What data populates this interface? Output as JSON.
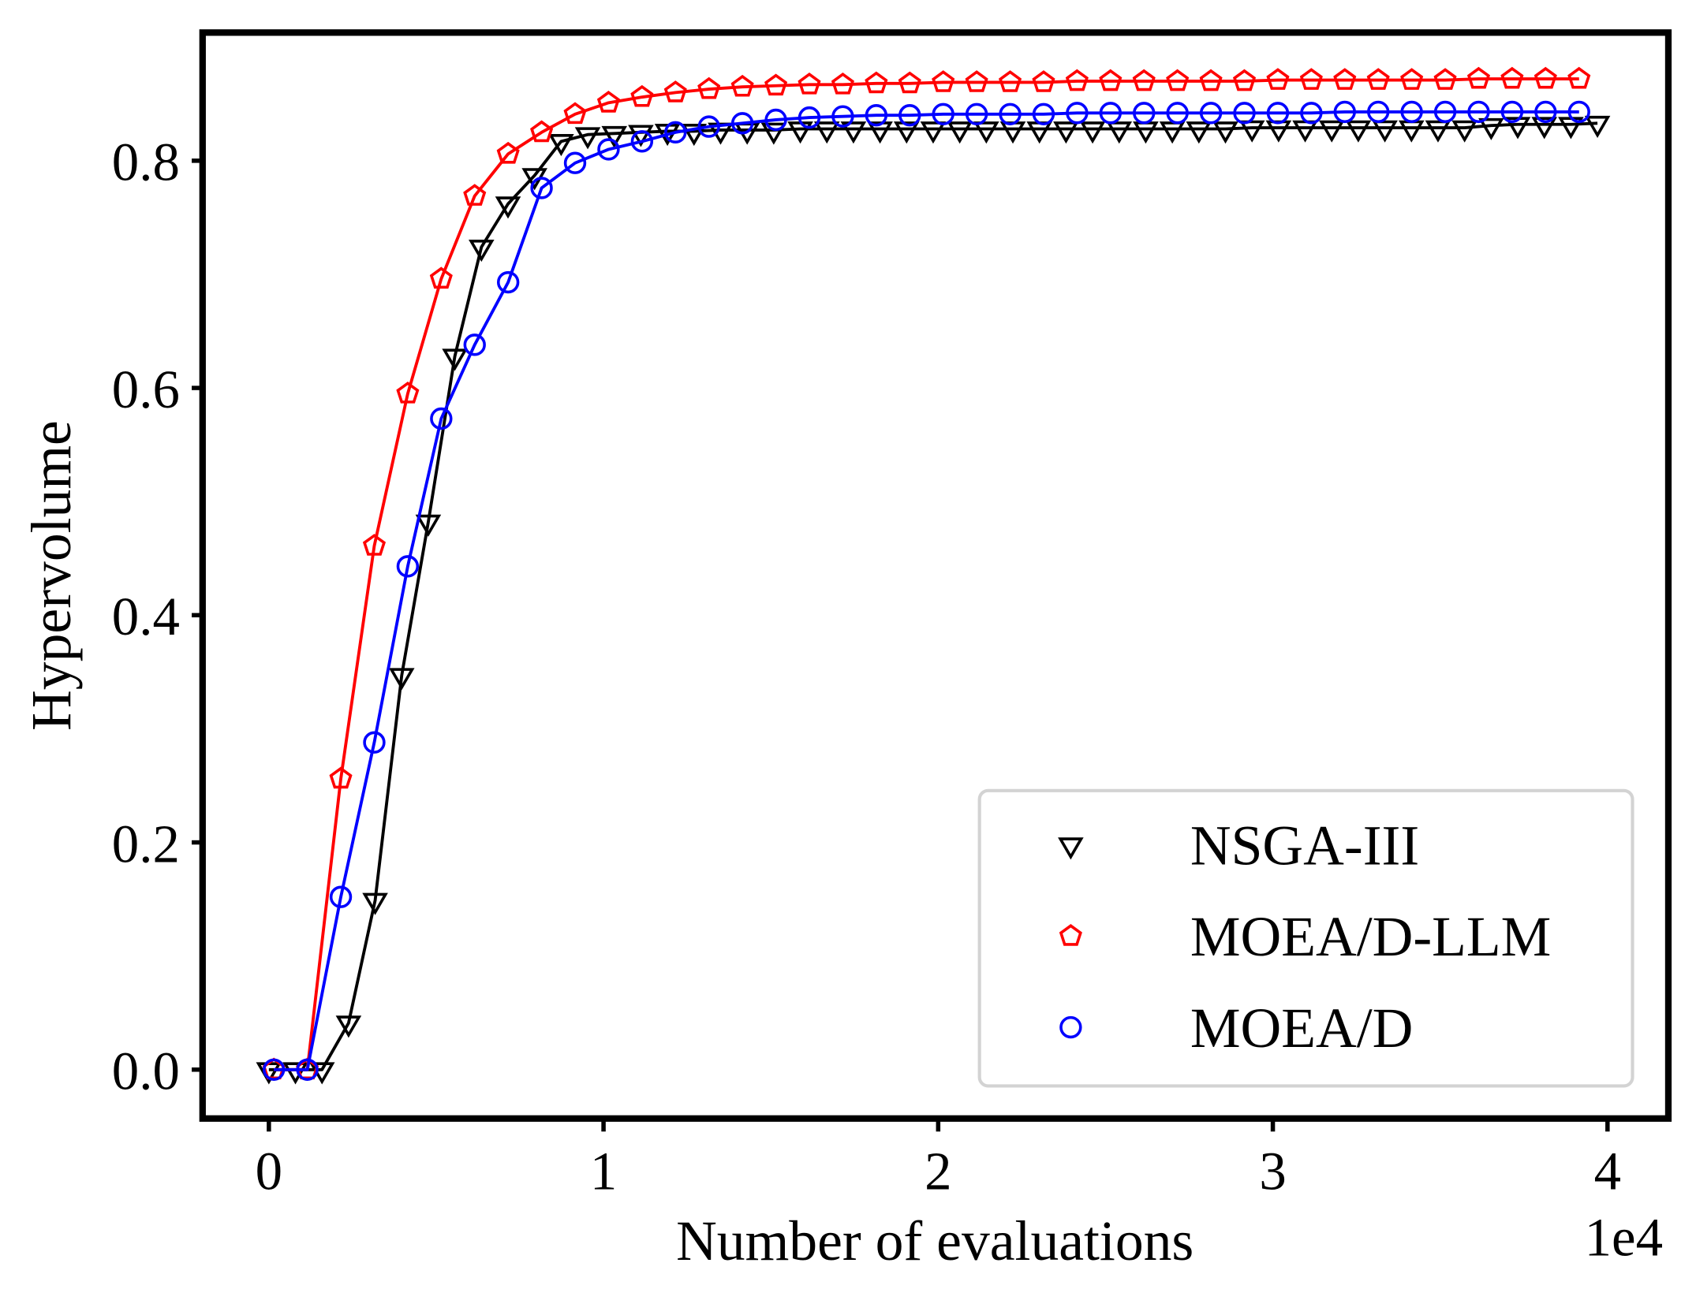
{
  "chart_data": {
    "type": "line",
    "title": "",
    "xlabel": "Number of evaluations",
    "ylabel": "Hypervolume",
    "x_offset_label": "1e4",
    "xlim": [
      -2000,
      42000
    ],
    "ylim": [
      -0.08,
      0.93
    ],
    "xticks": [
      0,
      10000,
      20000,
      30000,
      40000
    ],
    "xtick_labels": [
      "0",
      "1",
      "2",
      "3",
      "4"
    ],
    "yticks": [
      0.0,
      0.2,
      0.4,
      0.6,
      0.8
    ],
    "ytick_labels": [
      "0.0",
      "0.2",
      "0.4",
      "0.6",
      "0.8"
    ],
    "grid": false,
    "legend_position": "lower-right",
    "series": [
      {
        "name": "NSGA-III",
        "color": "#000000",
        "marker": "triangle-down",
        "x_start": 0,
        "x_step": 794,
        "values": [
          0,
          0,
          0,
          0.041,
          0.149,
          0.347,
          0.482,
          0.628,
          0.724,
          0.762,
          0.787,
          0.817,
          0.823,
          0.824,
          0.825,
          0.826,
          0.826,
          0.827,
          0.827,
          0.827,
          0.828,
          0.828,
          0.828,
          0.828,
          0.828,
          0.828,
          0.828,
          0.828,
          0.828,
          0.828,
          0.828,
          0.828,
          0.828,
          0.828,
          0.828,
          0.828,
          0.828,
          0.829,
          0.829,
          0.829,
          0.829,
          0.829,
          0.829,
          0.829,
          0.829,
          0.829,
          0.831,
          0.832,
          0.832,
          0.832,
          0.833
        ]
      },
      {
        "name": "MOEA/D-LLM",
        "color": "#ff0000",
        "marker": "pentagon",
        "x_start": 150,
        "x_step": 1000,
        "values": [
          0,
          0,
          0.256,
          0.461,
          0.595,
          0.696,
          0.769,
          0.806,
          0.825,
          0.841,
          0.851,
          0.856,
          0.86,
          0.863,
          0.865,
          0.866,
          0.867,
          0.867,
          0.868,
          0.868,
          0.869,
          0.869,
          0.869,
          0.869,
          0.87,
          0.87,
          0.87,
          0.87,
          0.87,
          0.87,
          0.871,
          0.871,
          0.871,
          0.871,
          0.871,
          0.871,
          0.872,
          0.872,
          0.872,
          0.872
        ]
      },
      {
        "name": "MOEA/D",
        "color": "#0000ff",
        "marker": "circle",
        "x_start": 150,
        "x_step": 1000,
        "values": [
          0,
          0,
          0.152,
          0.288,
          0.443,
          0.573,
          0.638,
          0.693,
          0.776,
          0.798,
          0.81,
          0.817,
          0.825,
          0.83,
          0.833,
          0.836,
          0.838,
          0.839,
          0.84,
          0.84,
          0.841,
          0.841,
          0.841,
          0.841,
          0.842,
          0.842,
          0.842,
          0.842,
          0.842,
          0.842,
          0.842,
          0.842,
          0.843,
          0.843,
          0.843,
          0.843,
          0.843,
          0.843,
          0.843,
          0.843
        ]
      }
    ]
  }
}
